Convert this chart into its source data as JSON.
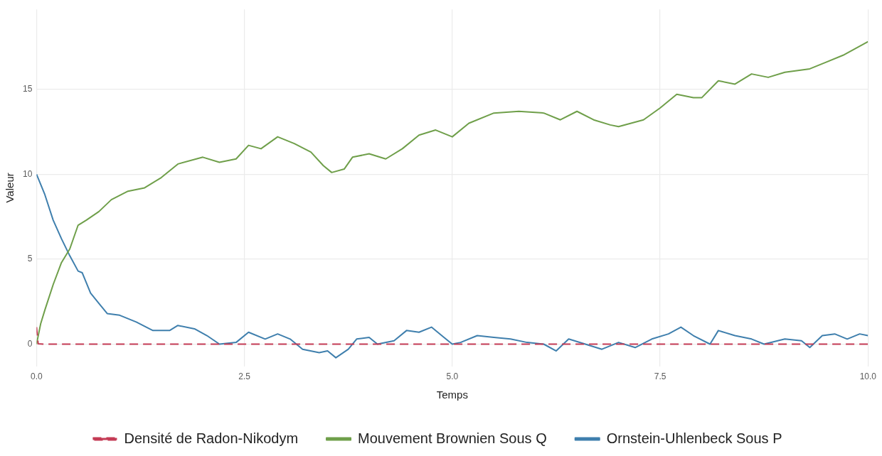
{
  "chart_data": {
    "type": "line",
    "xlabel": "Temps",
    "ylabel": "Valeur",
    "xlim": [
      0,
      10
    ],
    "ylim": [
      -1.3,
      19.7
    ],
    "xticks": [
      {
        "value": 0,
        "label": "0.0"
      },
      2.5,
      {
        "value": 5,
        "label": "5.0"
      },
      7.5,
      {
        "value": 10,
        "label": "10.0"
      }
    ],
    "yticks": [
      0,
      5,
      10,
      15
    ],
    "grid": true,
    "legend": "bottom",
    "marker": "none",
    "series": [
      {
        "name": "Densité de Radon-Nikodym",
        "color": "#c43b55",
        "line_style": "dashed",
        "x": [
          0,
          0.02,
          0.1,
          10
        ],
        "values": [
          1,
          0.02,
          0,
          0
        ]
      },
      {
        "name": "Mouvement Brownien Sous Q",
        "color": "#6f9f4a",
        "line_style": "solid",
        "x": [
          0,
          0.05,
          0.1,
          0.2,
          0.3,
          0.4,
          0.5,
          0.6,
          0.75,
          0.9,
          1.1,
          1.3,
          1.5,
          1.7,
          2.0,
          2.2,
          2.4,
          2.55,
          2.7,
          2.9,
          3.1,
          3.3,
          3.45,
          3.55,
          3.7,
          3.8,
          4.0,
          4.2,
          4.4,
          4.6,
          4.8,
          5.0,
          5.2,
          5.5,
          5.8,
          6.1,
          6.3,
          6.5,
          6.7,
          6.9,
          7.0,
          7.3,
          7.5,
          7.7,
          7.9,
          8.0,
          8.2,
          8.4,
          8.6,
          8.8,
          9.0,
          9.3,
          9.5,
          9.7,
          10
        ],
        "values": [
          0,
          1.2,
          2,
          3.5,
          4.8,
          5.6,
          7,
          7.3,
          7.8,
          8.5,
          9,
          9.2,
          9.8,
          10.6,
          11,
          10.7,
          10.9,
          11.7,
          11.5,
          12.2,
          11.8,
          11.3,
          10.5,
          10.1,
          10.3,
          11,
          11.2,
          10.9,
          11.5,
          12.3,
          12.6,
          12.2,
          13,
          13.6,
          13.7,
          13.6,
          13.2,
          13.7,
          13.2,
          12.9,
          12.8,
          13.2,
          13.9,
          14.7,
          14.5,
          14.5,
          15.5,
          15.3,
          15.9,
          15.7,
          16,
          16.2,
          16.6,
          17,
          17.8
        ]
      },
      {
        "name": "Ornstein-Uhlenbeck Sous P",
        "color": "#3f7fad",
        "line_style": "solid",
        "x": [
          0,
          0.1,
          0.2,
          0.3,
          0.4,
          0.5,
          0.55,
          0.65,
          0.75,
          0.85,
          1.0,
          1.2,
          1.4,
          1.6,
          1.7,
          1.9,
          2.05,
          2.2,
          2.4,
          2.55,
          2.75,
          2.9,
          3.05,
          3.2,
          3.4,
          3.5,
          3.6,
          3.75,
          3.85,
          4.0,
          4.1,
          4.3,
          4.45,
          4.6,
          4.75,
          4.9,
          5.0,
          5.1,
          5.3,
          5.5,
          5.7,
          5.9,
          6.1,
          6.25,
          6.4,
          6.6,
          6.8,
          7.0,
          7.2,
          7.4,
          7.6,
          7.75,
          7.9,
          8.1,
          8.2,
          8.4,
          8.6,
          8.75,
          9.0,
          9.2,
          9.3,
          9.45,
          9.6,
          9.75,
          9.9,
          10
        ],
        "values": [
          10,
          8.8,
          7.3,
          6.2,
          5.2,
          4.3,
          4.2,
          3,
          2.4,
          1.8,
          1.7,
          1.3,
          0.8,
          0.8,
          1.1,
          0.9,
          0.5,
          0,
          0.1,
          0.7,
          0.3,
          0.6,
          0.3,
          -0.3,
          -0.5,
          -0.4,
          -0.8,
          -0.3,
          0.3,
          0.4,
          0,
          0.2,
          0.8,
          0.7,
          1,
          0.4,
          0,
          0.1,
          0.5,
          0.4,
          0.3,
          0.1,
          0,
          -0.4,
          0.3,
          0,
          -0.3,
          0.1,
          -0.2,
          0.3,
          0.6,
          1,
          0.5,
          0,
          0.8,
          0.5,
          0.3,
          0,
          0.3,
          0.2,
          -0.2,
          0.5,
          0.6,
          0.3,
          0.6,
          0.5
        ]
      }
    ]
  }
}
